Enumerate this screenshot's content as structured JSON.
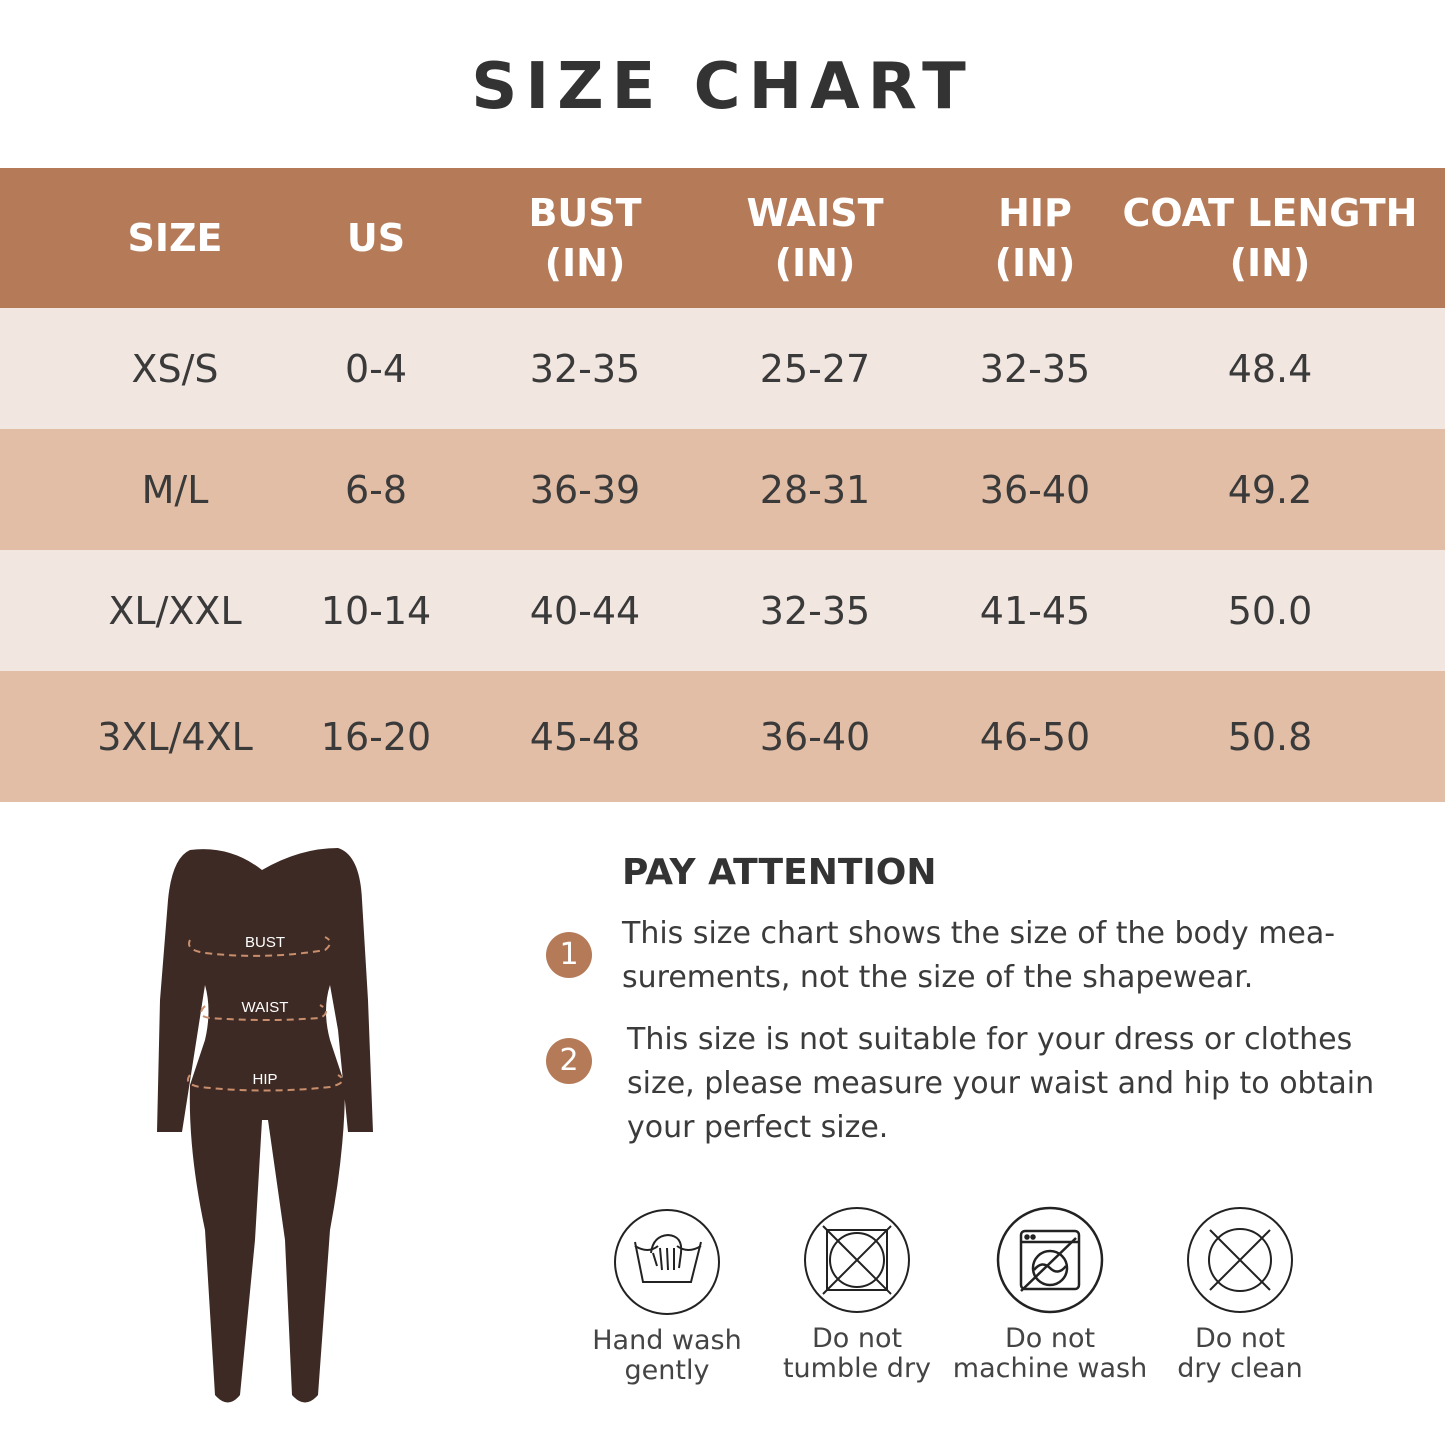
{
  "title": "SIZE CHART",
  "colors": {
    "header": "#b57b59",
    "row_light": "#f2e6e1",
    "row_dark": "#e3bea6",
    "garment": "#3e2a24",
    "number_badge": "#b57b59"
  },
  "table": {
    "headers": [
      "SIZE",
      "US",
      "BUST\n(IN)",
      "WAIST\n(IN)",
      "HIP\n(IN)",
      "COAT LENGTH\n(IN)"
    ],
    "rows": [
      [
        "XS/S",
        "0-4",
        "32-35",
        "25-27",
        "32-35",
        "48.4"
      ],
      [
        "M/L",
        "6-8",
        "36-39",
        "28-31",
        "36-40",
        "49.2"
      ],
      [
        "XL/XXL",
        "10-14",
        "40-44",
        "32-35",
        "41-45",
        "50.0"
      ],
      [
        "3XL/4XL",
        "16-20",
        "45-48",
        "36-40",
        "46-50",
        "50.8"
      ]
    ]
  },
  "figure": {
    "labels": [
      "BUST",
      "WAIST",
      "HIP"
    ]
  },
  "attention": {
    "title": "PAY ATTENTION",
    "notes": [
      {
        "num": "1",
        "text": "This size chart shows the size of the body mea-\nsurements, not the size of the shapewear."
      },
      {
        "num": "2",
        "text": "This size is not suitable for your dress or clothes\nsize, please measure your waist and hip to obtain\nyour perfect size."
      }
    ]
  },
  "care": [
    {
      "icon": "hand-wash-icon",
      "label": "Hand wash\ngently"
    },
    {
      "icon": "no-tumble-dry-icon",
      "label": "Do not\ntumble dry"
    },
    {
      "icon": "no-machine-wash-icon",
      "label": "Do not\nmachine wash"
    },
    {
      "icon": "no-dry-clean-icon",
      "label": "Do not\ndry clean"
    }
  ]
}
